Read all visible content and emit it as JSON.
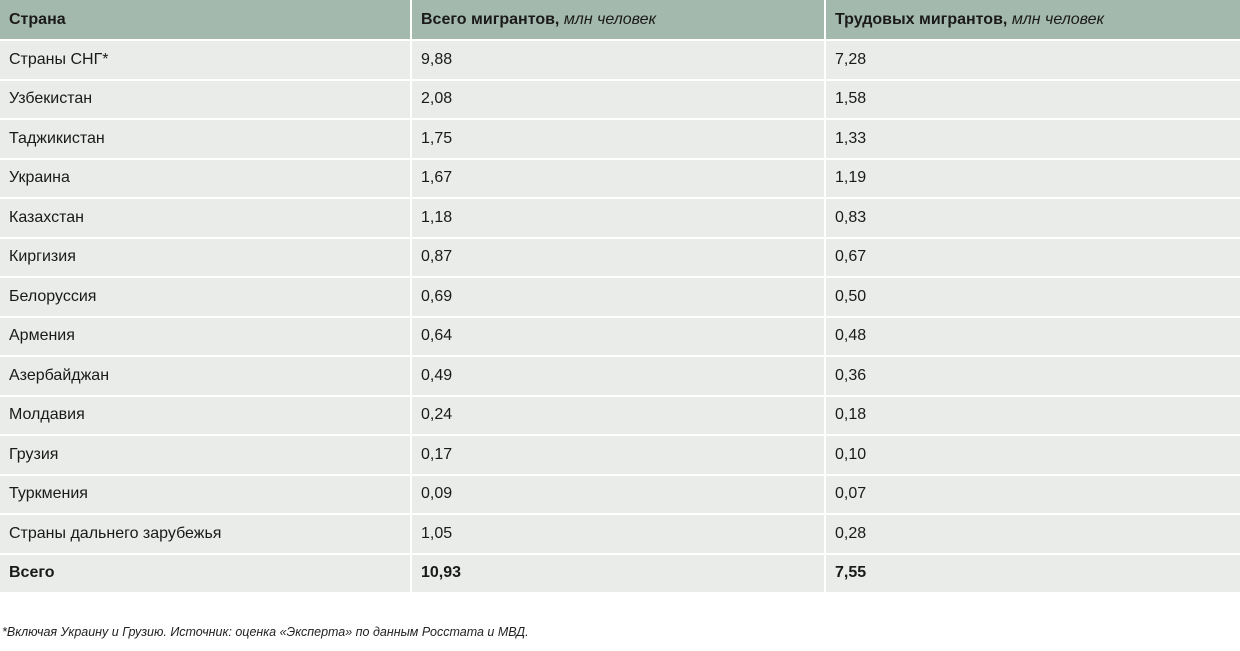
{
  "chart_data": {
    "type": "table",
    "columns": [
      {
        "label": "Страна",
        "unit": ""
      },
      {
        "label": "Всего мигрантов,",
        "unit": "млн человек"
      },
      {
        "label": "Трудовых мигрантов,",
        "unit": "млн человек"
      }
    ],
    "rows": [
      {
        "country": "Страны СНГ*",
        "total": "9,88",
        "labor": "7,28"
      },
      {
        "country": "Узбекистан",
        "total": "2,08",
        "labor": "1,58"
      },
      {
        "country": "Таджикистан",
        "total": "1,75",
        "labor": "1,33"
      },
      {
        "country": "Украина",
        "total": "1,67",
        "labor": "1,19"
      },
      {
        "country": "Казахстан",
        "total": "1,18",
        "labor": "0,83"
      },
      {
        "country": "Киргизия",
        "total": "0,87",
        "labor": "0,67"
      },
      {
        "country": "Белоруссия",
        "total": "0,69",
        "labor": "0,50"
      },
      {
        "country": "Армения",
        "total": "0,64",
        "labor": "0,48"
      },
      {
        "country": "Азербайджан",
        "total": "0,49",
        "labor": "0,36"
      },
      {
        "country": "Молдавия",
        "total": "0,24",
        "labor": "0,18"
      },
      {
        "country": "Грузия",
        "total": "0,17",
        "labor": "0,10"
      },
      {
        "country": "Туркмения",
        "total": "0,09",
        "labor": "0,07"
      },
      {
        "country": "Страны дальнего зарубежья",
        "total": "1,05",
        "labor": "0,28"
      }
    ],
    "total_row": {
      "country": "Всего",
      "total": "10,93",
      "labor": "7,55"
    }
  },
  "footnote": "*Включая Украину и Грузию. Источник: оценка «Эксперта» по данным Росстата и МВД.",
  "colors": {
    "header_bg": "#a4b9ad",
    "row_bg": "#e9ece9"
  }
}
